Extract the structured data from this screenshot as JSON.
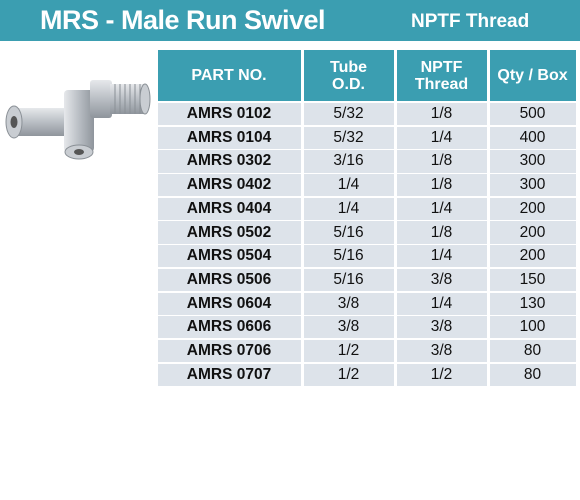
{
  "header": {
    "title": "MRS - Male Run Swivel",
    "subtitle": "NPTF Thread"
  },
  "table": {
    "columns": [
      "PART NO.",
      "Tube O.D.",
      "NPTF Thread",
      "Qty / Box"
    ],
    "rows": [
      [
        "AMRS 0102",
        "5/32",
        "1/8",
        500
      ],
      [
        "AMRS 0104",
        "5/32",
        "1/4",
        400
      ],
      [
        "AMRS 0302",
        "3/16",
        "1/8",
        300
      ],
      [
        "AMRS 0402",
        "1/4",
        "1/8",
        300
      ],
      [
        "AMRS 0404",
        "1/4",
        "1/4",
        200
      ],
      [
        "AMRS 0502",
        "5/16",
        "1/8",
        200
      ],
      [
        "AMRS 0504",
        "5/16",
        "1/4",
        200
      ],
      [
        "AMRS 0506",
        "5/16",
        "3/8",
        150
      ],
      [
        "AMRS 0604",
        "3/8",
        "1/4",
        130
      ],
      [
        "AMRS 0606",
        "3/8",
        "3/8",
        100
      ],
      [
        "AMRS 0706",
        "1/2",
        "3/8",
        80
      ],
      [
        "AMRS 0707",
        "1/2",
        "1/2",
        80
      ]
    ]
  }
}
